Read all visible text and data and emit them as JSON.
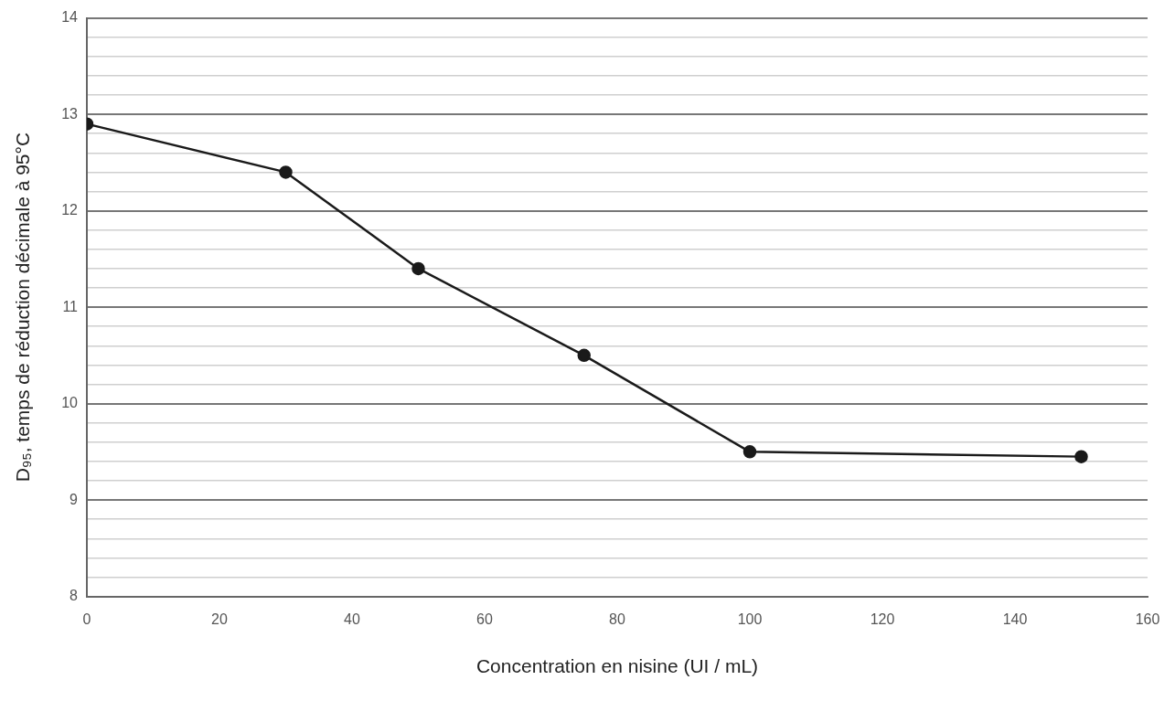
{
  "chart_data": {
    "type": "line",
    "xlabel": "Concentration en nisine (UI / mL)",
    "ylabel": "D₉₅, temps de réduction décimale à 95°C",
    "x": [
      0,
      30,
      50,
      75,
      100,
      150
    ],
    "series": [
      {
        "color": "#1a1a1a",
        "values": [
          12.9,
          12.4,
          11.4,
          10.5,
          9.5,
          9.45
        ]
      }
    ],
    "xlim": [
      0,
      160
    ],
    "xticks": [
      0,
      20,
      40,
      60,
      80,
      100,
      120,
      140,
      160
    ],
    "ylim": [
      8,
      14
    ],
    "yticks": [
      8,
      {
        "value": 8.2,
        "label": null
      },
      {
        "value": 8.4,
        "label": null
      },
      {
        "value": 8.6,
        "label": null
      },
      {
        "value": 8.8,
        "label": null
      },
      9,
      {
        "value": 9.2,
        "label": null
      },
      {
        "value": 9.4,
        "label": null
      },
      {
        "value": 9.6,
        "label": null
      },
      {
        "value": 9.8,
        "label": null
      },
      10,
      {
        "value": 10.2,
        "label": null
      },
      {
        "value": 10.4,
        "label": null
      },
      {
        "value": 10.6,
        "label": null
      },
      {
        "value": 10.8,
        "label": null
      },
      11,
      {
        "value": 11.2,
        "label": null
      },
      {
        "value": 11.4,
        "label": null
      },
      {
        "value": 11.6,
        "label": null
      },
      {
        "value": 11.8,
        "label": null
      },
      12,
      {
        "value": 12.2,
        "label": null
      },
      {
        "value": 12.4,
        "label": null
      },
      {
        "value": 12.6,
        "label": null
      },
      {
        "value": 12.8,
        "label": null
      },
      13,
      {
        "value": 13.2,
        "label": null
      },
      {
        "value": 13.4,
        "label": null
      },
      {
        "value": 13.6,
        "label": null
      },
      {
        "value": 13.8,
        "label": null
      },
      14
    ],
    "grid": "y",
    "legend": false,
    "marker": "circle",
    "line_style": "solid"
  }
}
